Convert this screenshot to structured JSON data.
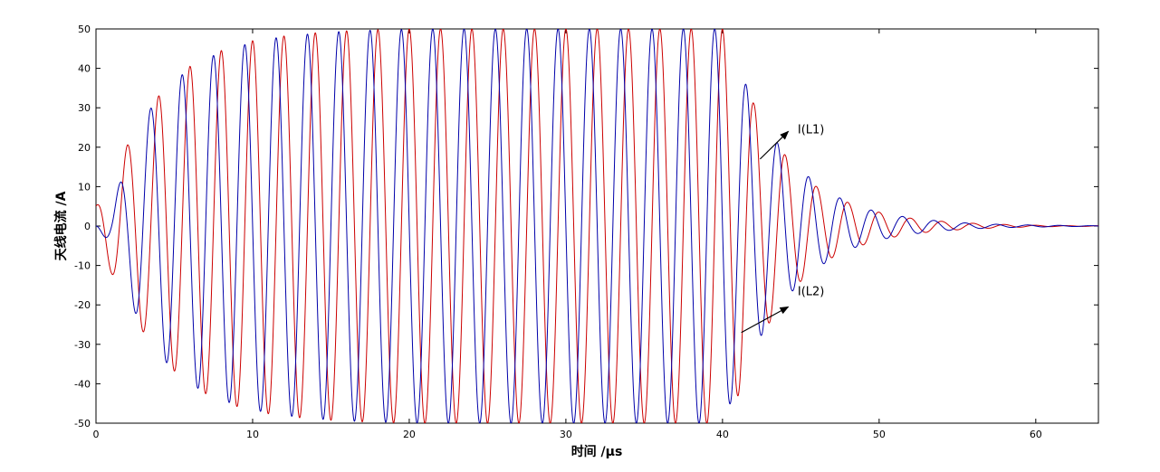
{
  "chart_data": {
    "type": "line",
    "title": "",
    "xlabel": "时间 /μs",
    "ylabel": "天线电流 /A",
    "xlim": [
      0,
      64
    ],
    "ylim": [
      -50,
      50
    ],
    "xticks": [
      0,
      10,
      20,
      30,
      40,
      50,
      60
    ],
    "yticks": [
      -50,
      -40,
      -30,
      -20,
      -10,
      0,
      10,
      20,
      30,
      40,
      50
    ],
    "grid": false,
    "oscillation_period_us": 2.0,
    "drive_off_time_us": 40,
    "series": [
      {
        "name": "I(L1)",
        "color": "#0000aa",
        "phase": "sine",
        "envelope": {
          "t": [
            0,
            1,
            3,
            5,
            7,
            9,
            11,
            13,
            15,
            17,
            19,
            21,
            23,
            25,
            27,
            29,
            31,
            33,
            35,
            37,
            39,
            40,
            41,
            43,
            45,
            47,
            49,
            51,
            53,
            55,
            57,
            59,
            61,
            63,
            64
          ],
          "amp": [
            0,
            5,
            27.5,
            37,
            42.5,
            45.5,
            47.5,
            48.5,
            49.2,
            49.6,
            49.8,
            50,
            50,
            50,
            50,
            50,
            50,
            50,
            50,
            50,
            50,
            50,
            40,
            23.5,
            14,
            8,
            4.5,
            2.7,
            1.6,
            0.9,
            0.5,
            0.3,
            0.2,
            0.1,
            0.1
          ]
        }
      },
      {
        "name": "I(L2)",
        "color": "#cc0000",
        "phase": "cosine",
        "envelope": {
          "t": [
            0,
            1,
            2,
            4,
            6,
            8,
            10,
            12,
            14,
            16,
            18,
            20,
            22,
            24,
            26,
            28,
            30,
            32,
            34,
            36,
            38,
            40,
            41,
            42,
            44,
            46,
            48,
            50,
            52,
            54,
            56,
            58,
            60,
            62,
            64
          ],
          "amp": [
            5,
            12,
            20.5,
            33,
            40.5,
            44.5,
            47,
            48.2,
            49,
            49.5,
            49.8,
            50,
            50,
            50,
            50,
            50,
            50,
            50,
            50,
            50,
            50,
            50,
            43,
            31,
            18,
            10,
            6,
            3.5,
            2,
            1.2,
            0.7,
            0.4,
            0.2,
            0.1,
            0.1
          ]
        }
      }
    ],
    "annotations": [
      {
        "text": "I(L1)",
        "series": "I(L1)"
      },
      {
        "text": "I(L2)",
        "series": "I(L2)"
      }
    ]
  }
}
